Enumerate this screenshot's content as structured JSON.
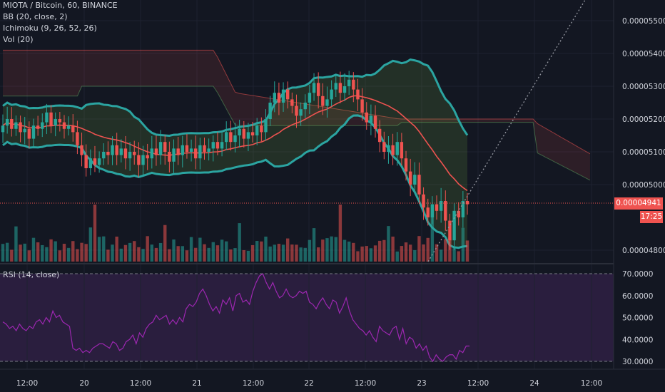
{
  "legend": {
    "title": "MIOTA / Bitcoin, 60, BINANCE",
    "bb": "BB (20, close, 2)",
    "ichimoku": "Ichimoku (9, 26, 52, 26)",
    "vol": "Vol (20)",
    "rsi": "RSI (14, close)"
  },
  "price_tags": {
    "last": "0.00004941",
    "countdown": "17:25"
  },
  "colors": {
    "background": "#131722",
    "up": "#26a69a",
    "down": "#ef5350",
    "bb_line": "#2ba4a1",
    "rsi_line": "#9c27b0",
    "rsi_band": "#2a1e3e",
    "last_price": "#ef5350"
  },
  "chart_data": [
    {
      "type": "candlestick",
      "title": "MIOTA / Bitcoin, 60, BINANCE",
      "y_ticks": [
        "0.00005500",
        "0.00005400",
        "0.00005300",
        "0.00005200",
        "0.00005100",
        "0.00005000",
        "0.00004800"
      ],
      "x_ticks": [
        "12:00",
        "20",
        "12:00",
        "21",
        "12:00",
        "22",
        "12:00",
        "23",
        "12:00",
        "24",
        "12:00"
      ],
      "ylim": [
        4.77e-05,
        5.56e-05
      ],
      "last_price": 4.941e-05,
      "close": [
        5.18e-05,
        5.2e-05,
        5.17e-05,
        5.19e-05,
        5.16e-05,
        5.17e-05,
        5.14e-05,
        5.18e-05,
        5.17e-05,
        5.19e-05,
        5.22e-05,
        5.18e-05,
        5.2e-05,
        5.19e-05,
        5.17e-05,
        5.18e-05,
        5.16e-05,
        5.12e-05,
        5.09e-05,
        5.05e-05,
        5.08e-05,
        5.06e-05,
        5.08e-05,
        5.1e-05,
        5.09e-05,
        5.12e-05,
        5.09e-05,
        5.11e-05,
        5.08e-05,
        5.1e-05,
        5.09e-05,
        5.06e-05,
        5.09e-05,
        5.08e-05,
        5.11e-05,
        5.09e-05,
        5.13e-05,
        5.1e-05,
        5.07e-05,
        5.11e-05,
        5.09e-05,
        5.12e-05,
        5.1e-05,
        5.11e-05,
        5.08e-05,
        5.12e-05,
        5.1e-05,
        5.11e-05,
        5.13e-05,
        5.11e-05,
        5.13e-05,
        5.16e-05,
        5.13e-05,
        5.15e-05,
        5.17e-05,
        5.14e-05,
        5.16e-05,
        5.15e-05,
        5.18e-05,
        5.16e-05,
        5.2e-05,
        5.25e-05,
        5.28e-05,
        5.25e-05,
        5.29e-05,
        5.26e-05,
        5.24e-05,
        5.21e-05,
        5.23e-05,
        5.25e-05,
        5.28e-05,
        5.31e-05,
        5.27e-05,
        5.24e-05,
        5.26e-05,
        5.29e-05,
        5.31e-05,
        5.28e-05,
        5.3e-05,
        5.32e-05,
        5.29e-05,
        5.26e-05,
        5.22e-05,
        5.19e-05,
        5.21e-05,
        5.17e-05,
        5.13e-05,
        5.1e-05,
        5.12e-05,
        5.09e-05,
        5.13e-05,
        5.08e-05,
        5.04e-05,
        5e-05,
        5.03e-05,
        4.97e-05,
        4.93e-05,
        4.9e-05,
        4.94e-05,
        4.92e-05,
        4.95e-05,
        4.89e-05,
        4.83e-05,
        4.92e-05,
        4.9e-05,
        4.95e-05,
        4.94e-05
      ]
    },
    {
      "type": "bar",
      "title": "Vol (20)"
    },
    {
      "type": "line",
      "title": "RSI (14, close)",
      "y_ticks": [
        "70.0000",
        "60.0000",
        "50.0000",
        "40.0000",
        "30.0000"
      ],
      "ylim": [
        27,
        73
      ],
      "values": [
        48,
        47,
        45,
        46,
        44,
        47,
        45,
        44,
        46,
        45,
        48,
        49,
        47,
        50,
        48,
        53,
        50,
        51,
        48,
        47,
        46,
        36,
        35,
        36,
        34,
        35,
        34,
        36,
        37,
        38,
        38,
        37,
        36,
        39,
        38,
        35,
        36,
        39,
        40,
        42,
        38,
        43,
        41,
        45,
        47,
        48,
        51,
        49,
        50,
        51,
        47,
        49,
        47,
        50,
        48,
        54,
        56,
        55,
        57,
        61,
        63,
        60,
        56,
        53,
        55,
        52,
        58,
        56,
        59,
        53,
        60,
        61,
        57,
        58,
        56,
        62,
        66,
        69,
        70,
        66,
        63,
        66,
        62,
        59,
        60,
        63,
        60,
        59,
        60,
        62,
        61,
        62,
        57,
        56,
        54,
        57,
        59,
        56,
        54,
        58,
        57,
        52,
        55,
        59,
        53,
        49,
        47,
        45,
        44,
        42,
        44,
        41,
        39,
        46,
        44,
        43,
        42,
        45,
        46,
        40,
        45,
        38,
        41,
        40,
        36,
        38,
        35,
        37,
        32,
        30,
        33,
        31,
        30,
        32,
        33,
        33,
        31,
        35,
        34,
        37,
        37
      ]
    }
  ]
}
